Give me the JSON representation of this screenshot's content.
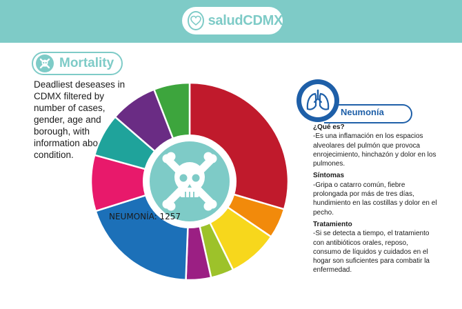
{
  "header": {
    "brand": "saludCDMX"
  },
  "section": {
    "title": "Mortality",
    "description": "Deadliest deseases in CDMX filtered by number of cases, gender, age and borough, with information about the condition."
  },
  "chart_data": {
    "type": "pie",
    "selected_label": "NEUMONÍA: 1257",
    "categories": [
      "Neumonía",
      "",
      "",
      "",
      "",
      "",
      "",
      "",
      "",
      "",
      ""
    ],
    "values": [
      1257,
      210,
      350,
      160,
      175,
      830,
      390,
      300,
      330,
      250,
      0
    ],
    "colors": [
      "#c01a2c",
      "#f28a0b",
      "#f7d71c",
      "#9dc22a",
      "#9b1f83",
      "#1c70b8",
      "#e8196b",
      "#1fa39b",
      "#6a2c84",
      "#3da53d",
      "#ffffff"
    ]
  },
  "info": {
    "title": "Neumonía",
    "sections": [
      {
        "heading": "¿Qué es?",
        "text": "-Es una inflamación en los espacios alveolares del pulmón que provoca enrojecimiento, hinchazón y dolor en los pulmones."
      },
      {
        "heading": "Síntomas",
        "text": "-Gripa o catarro común, fiebre prolongada por más de tres días, hundimiento en las costillas y dolor en el pecho."
      },
      {
        "heading": "Tratamiento",
        "text": "-Si se detecta a tiempo, el tratamiento con antibióticos orales, reposo, consumo de líquidos y cuidados en el hogar son suficientes para combatir la enfermedad."
      }
    ]
  }
}
